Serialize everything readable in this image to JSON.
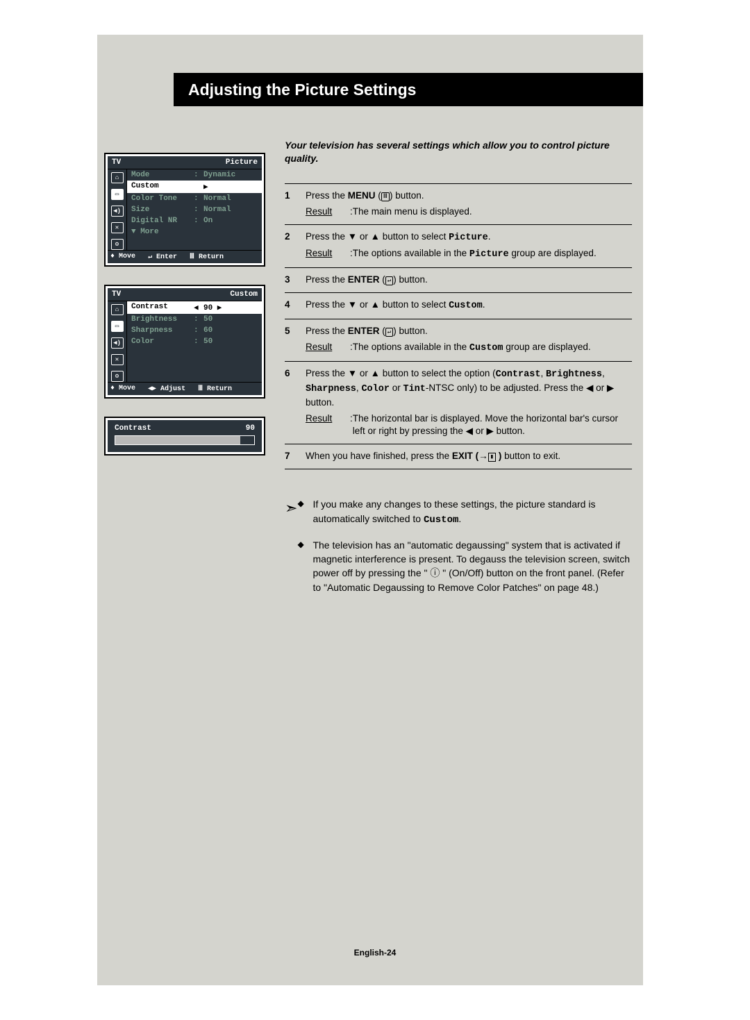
{
  "title": "Adjusting the Picture Settings",
  "intro": "Your television has several settings which allow you to control picture quality.",
  "page_label": "English-24",
  "colors": {
    "page_bg": "#d4d4ce",
    "osd_bg": "#2a333b",
    "osd_text_dim": "#7fa090",
    "osd_text": "#c8e0d4"
  },
  "osd1": {
    "tl": "TV",
    "tr": "Picture",
    "rows": [
      {
        "k": "Mode",
        "c": ":",
        "v": "Dynamic",
        "sel": false
      },
      {
        "k": "Custom",
        "c": "",
        "v": "▶",
        "sel": true
      },
      {
        "k": "Color Tone",
        "c": ":",
        "v": "Normal",
        "sel": false
      },
      {
        "k": "Size",
        "c": ":",
        "v": "Normal",
        "sel": false
      },
      {
        "k": "Digital NR",
        "c": ":",
        "v": "On",
        "sel": false
      },
      {
        "k": "▼ More",
        "c": "",
        "v": "",
        "sel": false
      }
    ],
    "foot": {
      "a": "♦ Move",
      "b": "↵ Enter",
      "c": "Ⅲ Return"
    }
  },
  "osd2": {
    "tl": "TV",
    "tr": "Custom",
    "rows": [
      {
        "k": "Contrast",
        "c": "◀",
        "v": "90       ▶",
        "sel": true
      },
      {
        "k": "Brightness",
        "c": ":",
        "v": "50",
        "sel": false
      },
      {
        "k": "Sharpness",
        "c": ":",
        "v": "60",
        "sel": false
      },
      {
        "k": "Color",
        "c": ":",
        "v": "50",
        "sel": false
      }
    ],
    "foot": {
      "a": "♦ Move",
      "b": "◀▶ Adjust",
      "c": "Ⅲ Return"
    }
  },
  "osd3": {
    "label": "Contrast",
    "value": "90",
    "percent": 90
  },
  "steps": [
    {
      "n": "1",
      "lines": [
        {
          "type": "text",
          "html": "Press the <b>MENU</b> (<span class='glyph-btn'>Ⅲ</span>) button."
        }
      ],
      "result": "The main menu is displayed."
    },
    {
      "n": "2",
      "lines": [
        {
          "type": "text",
          "html": "Press the ▼ or ▲ button to select <span class='mono'>Picture</span>."
        }
      ],
      "result_html": "The options available in the <span class='mono'>Picture</span> group are displayed."
    },
    {
      "n": "3",
      "lines": [
        {
          "type": "text",
          "html": "Press the <b>ENTER</b> (<span class='glyph-btn'>↵</span>) button."
        }
      ]
    },
    {
      "n": "4",
      "lines": [
        {
          "type": "text",
          "html": "Press the ▼ or ▲ button to select <span class='mono'>Custom</span>."
        }
      ]
    },
    {
      "n": "5",
      "lines": [
        {
          "type": "text",
          "html": "Press the <b>ENTER</b> (<span class='glyph-btn'>↵</span>) button."
        }
      ],
      "result_html": "The options available in the <span class='mono'>Custom</span> group are displayed."
    },
    {
      "n": "6",
      "lines": [
        {
          "type": "text",
          "html": "Press the ▼ or ▲ button to select the option (<span class='mono'>Contrast</span>, <span class='mono'>Brightness</span>, <span class='mono'>Sharpness</span>, <span class='mono'>Color</span> or <span class='mono'>Tint</span>-NTSC only) to be adjusted. Press the ◀ or ▶ button."
        }
      ],
      "result_html": "The horizontal bar is displayed. Move the horizontal bar's cursor left or right by pressing the ◀ or ▶ button."
    },
    {
      "n": "7",
      "lines": [
        {
          "type": "text",
          "html": "When you have finished, press the <b>EXIT (→<span class='glyph-btn' style='border-radius:0'>▮</span> )</b> button to exit."
        }
      ]
    }
  ],
  "notes": [
    "If you make any changes to these settings, the picture standard is automatically switched to <span class='mono'>Custom</span>.",
    "The television has an \"automatic degaussing\" system that is activated if magnetic interference is present. To degauss the television screen, switch power off by pressing the \" ⓘ \" (On/Off) button on the front panel. (Refer to \"Automatic Degaussing to Remove Color Patches\" on page 48.)"
  ]
}
